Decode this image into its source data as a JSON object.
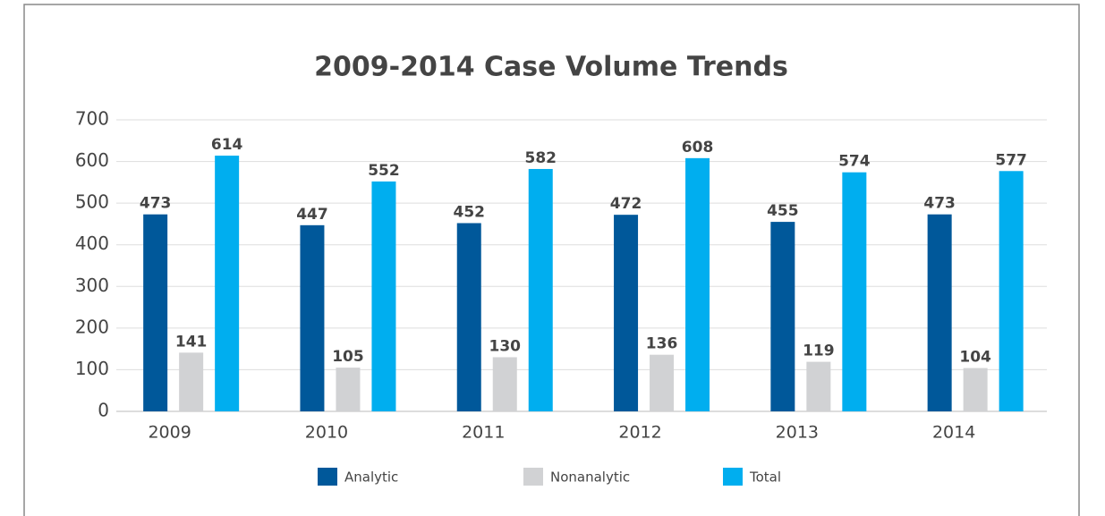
{
  "chart_data": {
    "type": "bar",
    "title": "2009-2014 Case Volume Trends",
    "categories": [
      "2009",
      "2010",
      "2011",
      "2012",
      "2013",
      "2014"
    ],
    "series": [
      {
        "name": "Analytic",
        "color": "#00589a",
        "values": [
          473,
          447,
          452,
          472,
          455,
          473
        ]
      },
      {
        "name": "Nonanalytic",
        "color": "#d1d2d4",
        "values": [
          141,
          105,
          130,
          136,
          119,
          104
        ]
      },
      {
        "name": "Total",
        "color": "#00aeef",
        "values": [
          614,
          552,
          582,
          608,
          574,
          577
        ]
      }
    ],
    "ylim": [
      0,
      700
    ],
    "yticks": [
      0,
      100,
      200,
      300,
      400,
      500,
      600,
      700
    ],
    "grid": true,
    "legend": "bottom"
  }
}
